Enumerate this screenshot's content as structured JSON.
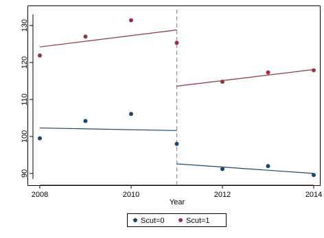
{
  "chart_data": {
    "type": "scatter",
    "title": "",
    "xlabel": "Year",
    "ylabel": "",
    "xlim": [
      2008,
      2014
    ],
    "ylim": [
      88.5,
      133
    ],
    "x_ticks": [
      2008,
      2010,
      2012,
      2014
    ],
    "y_ticks": [
      90,
      100,
      110,
      120,
      130
    ],
    "grid": false,
    "cutoff_year": 2011,
    "legend_position": "bottom-center",
    "series": [
      {
        "name": "Scut=0",
        "color": "#1a476f",
        "points": [
          {
            "x": 2008,
            "y": 99.5
          },
          {
            "x": 2009,
            "y": 104.2
          },
          {
            "x": 2010,
            "y": 106.1
          },
          {
            "x": 2011,
            "y": 98.0
          },
          {
            "x": 2012,
            "y": 91.2
          },
          {
            "x": 2013,
            "y": 92.0
          },
          {
            "x": 2014,
            "y": 89.6
          }
        ],
        "fit_lines": [
          {
            "x": [
              2008,
              2011
            ],
            "y": [
              102.3,
              101.6
            ]
          },
          {
            "x": [
              2011,
              2014
            ],
            "y": [
              92.6,
              90.0
            ]
          }
        ]
      },
      {
        "name": "Scut=1",
        "color": "#90353b",
        "points": [
          {
            "x": 2008,
            "y": 121.9
          },
          {
            "x": 2009,
            "y": 127.0
          },
          {
            "x": 2010,
            "y": 131.4
          },
          {
            "x": 2011,
            "y": 125.3
          },
          {
            "x": 2012,
            "y": 114.8
          },
          {
            "x": 2013,
            "y": 117.3
          },
          {
            "x": 2014,
            "y": 117.9
          }
        ],
        "fit_lines": [
          {
            "x": [
              2008,
              2011
            ],
            "y": [
              124.2,
              128.8
            ]
          },
          {
            "x": [
              2011,
              2014
            ],
            "y": [
              113.6,
              118.1
            ]
          }
        ]
      }
    ]
  }
}
